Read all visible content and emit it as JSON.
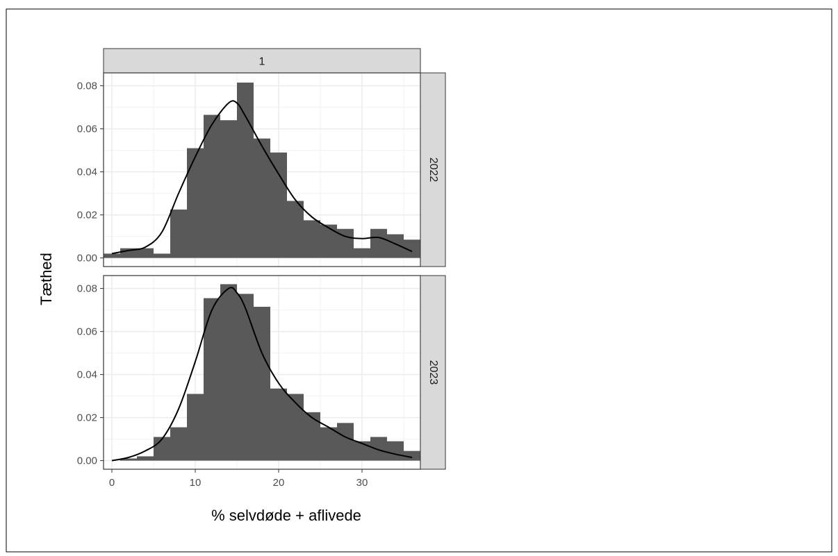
{
  "chart_data": {
    "type": "histogram",
    "xlabel": "% selvdøde + aflivede",
    "ylabel": "Tæthed",
    "col_facet_label": "1",
    "xlim": [
      -1,
      37
    ],
    "ylim": [
      -0.004,
      0.086
    ],
    "x_ticks": [
      0,
      10,
      20,
      30
    ],
    "y_ticks": [
      0.0,
      0.02,
      0.04,
      0.06,
      0.08
    ],
    "y_tick_labels": [
      "0.00",
      "0.02",
      "0.04",
      "0.06",
      "0.08"
    ],
    "bin_width": 2,
    "bin_starts": [
      -1,
      1,
      3,
      5,
      7,
      9,
      11,
      13,
      15,
      17,
      19,
      21,
      23,
      25,
      27,
      29,
      31,
      33,
      35
    ],
    "colors": {
      "bar": "#595959",
      "density_line": "#000000",
      "strip": "#d9d9d9",
      "grid": "#ebebeb",
      "panel_border": "#333333"
    },
    "panels": [
      {
        "label": "2022",
        "histogram": [
          0.002,
          0.0045,
          0.0045,
          0.002,
          0.0225,
          0.051,
          0.0665,
          0.064,
          0.0815,
          0.0555,
          0.049,
          0.0265,
          0.0175,
          0.0155,
          0.0135,
          0.0045,
          0.0135,
          0.011,
          0.0085
        ],
        "density": [
          [
            0,
            0.002
          ],
          [
            2,
            0.0035
          ],
          [
            4,
            0.005
          ],
          [
            6,
            0.012
          ],
          [
            8,
            0.03
          ],
          [
            10,
            0.047
          ],
          [
            12,
            0.062
          ],
          [
            14,
            0.072
          ],
          [
            15,
            0.072
          ],
          [
            16,
            0.066
          ],
          [
            18,
            0.052
          ],
          [
            20,
            0.039
          ],
          [
            22,
            0.027
          ],
          [
            24,
            0.019
          ],
          [
            26,
            0.014
          ],
          [
            28,
            0.01
          ],
          [
            30,
            0.009
          ],
          [
            32,
            0.0095
          ],
          [
            34,
            0.0065
          ],
          [
            36,
            0.003
          ]
        ]
      },
      {
        "label": "2023",
        "histogram": [
          0.0,
          0.001,
          0.002,
          0.011,
          0.0155,
          0.031,
          0.0755,
          0.082,
          0.0775,
          0.0715,
          0.0335,
          0.031,
          0.0225,
          0.0155,
          0.0175,
          0.009,
          0.011,
          0.009,
          0.0045
        ],
        "density": [
          [
            0,
            0.0
          ],
          [
            2,
            0.0015
          ],
          [
            4,
            0.0045
          ],
          [
            6,
            0.01
          ],
          [
            8,
            0.024
          ],
          [
            10,
            0.046
          ],
          [
            12,
            0.07
          ],
          [
            14,
            0.08
          ],
          [
            15,
            0.078
          ],
          [
            16,
            0.071
          ],
          [
            18,
            0.05
          ],
          [
            20,
            0.036
          ],
          [
            22,
            0.027
          ],
          [
            24,
            0.02
          ],
          [
            26,
            0.0155
          ],
          [
            28,
            0.011
          ],
          [
            30,
            0.008
          ],
          [
            32,
            0.005
          ],
          [
            34,
            0.003
          ],
          [
            36,
            0.0015
          ]
        ]
      }
    ]
  }
}
